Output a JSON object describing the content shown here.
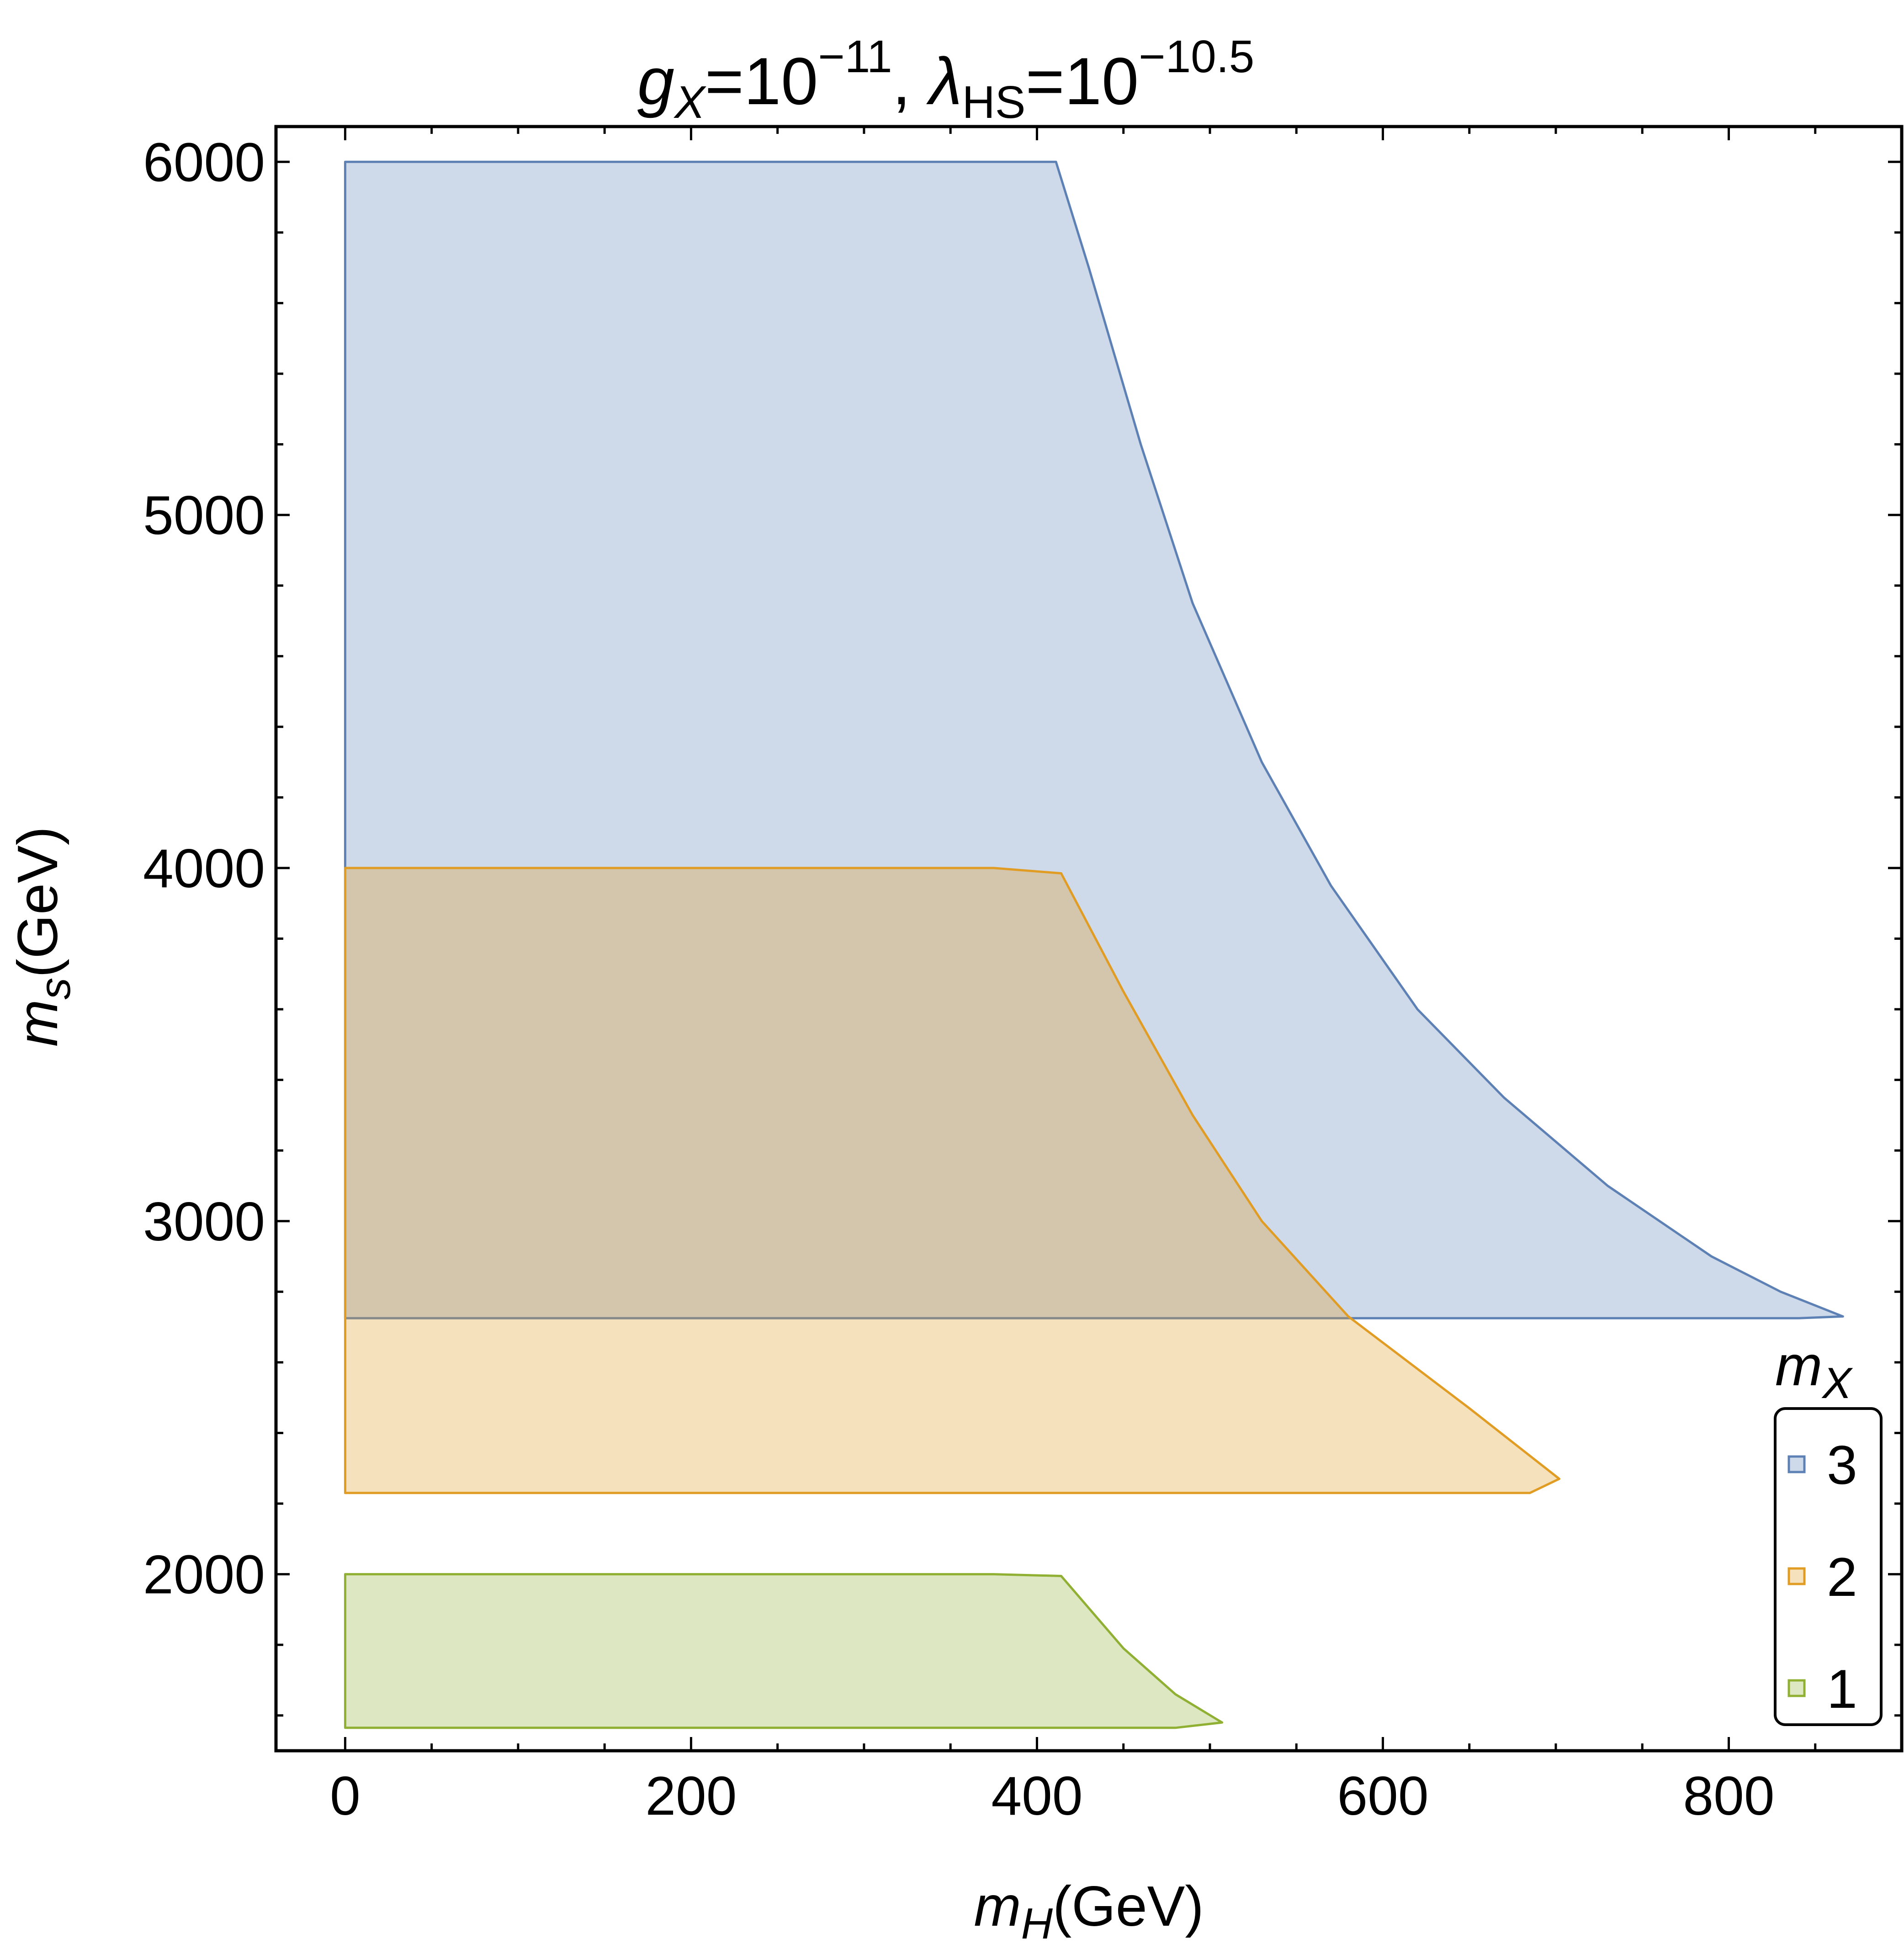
{
  "chart_data": {
    "type": "area",
    "title": {
      "g_sym": "g",
      "g_sub": "X",
      "g_eq": "=10",
      "g_exp": "−11",
      "sep": ", ",
      "l_sym": "λ",
      "l_sub": "HS",
      "l_eq": "=10",
      "l_exp": "−10.5"
    },
    "xlabel": {
      "sym": "m",
      "sub": "H",
      "unit": "(GeV)"
    },
    "ylabel": {
      "sym": "m",
      "sub": "s",
      "unit": "(GeV)"
    },
    "xlim": [
      -40,
      900
    ],
    "ylim": [
      1500,
      6100
    ],
    "xticks": [
      0,
      200,
      400,
      600,
      800
    ],
    "yticks": [
      2000,
      3000,
      4000,
      5000,
      6000
    ],
    "xtick_labels": [
      "0",
      "200",
      "400",
      "600",
      "800"
    ],
    "ytick_labels": [
      "2000",
      "3000",
      "4000",
      "5000",
      "6000"
    ],
    "grid": false,
    "legend": {
      "title_sym": "m",
      "title_sub": "X",
      "placement": "bottom-right",
      "entries": [
        "3",
        "2",
        "1"
      ]
    },
    "series": [
      {
        "name": "3",
        "color": "#5E81B5",
        "fill": "#C9D6E7",
        "points": [
          [
            0,
            2725
          ],
          [
            840,
            2725
          ],
          [
            866,
            2730
          ],
          [
            830,
            2800
          ],
          [
            790,
            2900
          ],
          [
            730,
            3100
          ],
          [
            670,
            3350
          ],
          [
            620,
            3600
          ],
          [
            570,
            3950
          ],
          [
            530,
            4300
          ],
          [
            490,
            4750
          ],
          [
            460,
            5200
          ],
          [
            430,
            5700
          ],
          [
            411,
            6000
          ],
          [
            0,
            6000
          ]
        ]
      },
      {
        "name": "2",
        "color": "#E19C24",
        "fill": "#F5DDB7",
        "points": [
          [
            0,
            2230
          ],
          [
            685,
            2230
          ],
          [
            702,
            2270
          ],
          [
            650,
            2470
          ],
          [
            580,
            2730
          ],
          [
            530,
            3000
          ],
          [
            490,
            3300
          ],
          [
            450,
            3650
          ],
          [
            414,
            3985
          ],
          [
            375,
            4000
          ],
          [
            0,
            4000
          ]
        ]
      },
      {
        "name": "1",
        "color": "#8FB032",
        "fill": "#DAE6BF",
        "points": [
          [
            0,
            1565
          ],
          [
            480,
            1565
          ],
          [
            507,
            1580
          ],
          [
            480,
            1660
          ],
          [
            450,
            1790
          ],
          [
            414,
            1995
          ],
          [
            375,
            2000
          ],
          [
            0,
            2000
          ]
        ]
      }
    ]
  }
}
